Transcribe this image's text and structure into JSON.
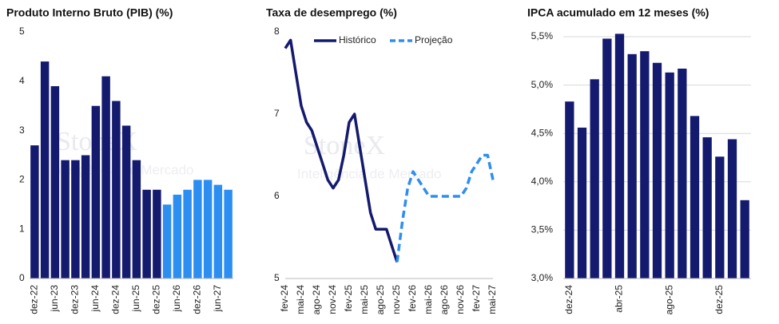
{
  "watermark": {
    "brand": "StoneX",
    "subtitle": "Inteligência de Mercado"
  },
  "chart_data": [
    {
      "type": "bar",
      "title": "Produto Interno Bruto (PIB)  (%)",
      "categories": [
        "dez-22",
        null,
        "jun-23",
        null,
        "dez-23",
        null,
        "jun-24",
        null,
        "dez-24",
        null,
        "jun-25",
        null,
        "dez-25",
        null,
        "jun-26",
        null,
        "dez-26",
        null,
        "jun-27",
        null
      ],
      "values": [
        2.7,
        4.4,
        3.9,
        2.4,
        2.4,
        2.5,
        3.5,
        4.1,
        3.6,
        3.1,
        2.4,
        1.8,
        1.8,
        1.5,
        1.7,
        1.8,
        2.0,
        2.0,
        1.9,
        1.8
      ],
      "colors": [
        "#141a6e",
        "#141a6e",
        "#141a6e",
        "#141a6e",
        "#141a6e",
        "#141a6e",
        "#141a6e",
        "#141a6e",
        "#141a6e",
        "#141a6e",
        "#141a6e",
        "#141a6e",
        "#141a6e",
        "#2d8ef2",
        "#2d8ef2",
        "#2d8ef2",
        "#2d8ef2",
        "#2d8ef2",
        "#2d8ef2",
        "#2d8ef2"
      ],
      "ylim": [
        0,
        5
      ],
      "yticks": [
        0,
        1,
        2,
        3,
        4,
        5
      ],
      "grid": false
    },
    {
      "type": "line",
      "title": "Taxa de desemprego (%)",
      "categories": [
        "fev-24",
        null,
        null,
        "mai-24",
        null,
        null,
        "ago-24",
        null,
        null,
        "nov-24",
        null,
        null,
        "fev-25",
        null,
        null,
        "mai-25",
        null,
        null,
        "ago-25",
        null,
        null,
        "nov-25",
        null,
        null,
        "fev-26",
        null,
        null,
        "mai-26",
        null,
        null,
        "ago-26",
        null,
        null,
        "nov-26",
        null,
        null,
        "fev-27",
        null,
        null,
        "mai-27"
      ],
      "series": [
        {
          "name": "Histórico",
          "color": "#141a6e",
          "dashed": false,
          "values": [
            7.8,
            7.9,
            7.5,
            7.1,
            6.9,
            6.8,
            6.6,
            6.4,
            6.2,
            6.1,
            6.2,
            6.5,
            6.9,
            7.0,
            6.6,
            6.2,
            5.8,
            5.6,
            5.6,
            5.6,
            5.4,
            5.2,
            null,
            null,
            null,
            null,
            null,
            null,
            null,
            null,
            null,
            null,
            null,
            null,
            null,
            null,
            null,
            null,
            null,
            null
          ]
        },
        {
          "name": "Projeção",
          "color": "#2d8ef2",
          "dashed": true,
          "values": [
            null,
            null,
            null,
            null,
            null,
            null,
            null,
            null,
            null,
            null,
            null,
            null,
            null,
            null,
            null,
            null,
            null,
            null,
            null,
            null,
            null,
            5.2,
            5.7,
            6.1,
            6.3,
            6.2,
            6.1,
            6.0,
            6.0,
            6.0,
            6.0,
            6.0,
            6.0,
            6.0,
            6.1,
            6.3,
            6.4,
            6.5,
            6.5,
            6.2
          ]
        }
      ],
      "ylim": [
        5,
        8
      ],
      "yticks": [
        5,
        6,
        7,
        8
      ],
      "grid": false,
      "legend": "top"
    },
    {
      "type": "bar",
      "title": "IPCA acumulado em 12 meses (%)",
      "categories": [
        "dez-24",
        null,
        null,
        null,
        "abr-25",
        null,
        null,
        null,
        "ago-25",
        null,
        null,
        null,
        "dez-25",
        null,
        null
      ],
      "values": [
        4.83,
        4.56,
        5.06,
        5.48,
        5.53,
        5.32,
        5.35,
        5.23,
        5.13,
        5.17,
        4.68,
        4.46,
        4.26,
        4.44,
        3.81
      ],
      "color": "#141a6e",
      "ylim": [
        3.0,
        5.5
      ],
      "yticks": [
        {
          "value": 3.0,
          "label": "3,0%"
        },
        {
          "value": 3.5,
          "label": "3,5%"
        },
        {
          "value": 4.0,
          "label": "4,0%"
        },
        {
          "value": 4.5,
          "label": "4,5%"
        },
        {
          "value": 5.0,
          "label": "5,0%"
        },
        {
          "value": 5.5,
          "label": "5,5%"
        }
      ],
      "grid": true
    }
  ]
}
